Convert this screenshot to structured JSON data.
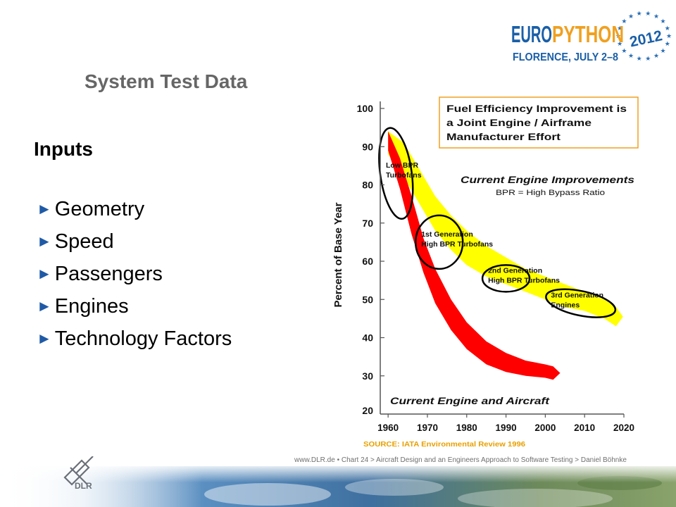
{
  "event_logo": {
    "name_part1": "EURO",
    "name_part2": "PYTHON",
    "year": "2012",
    "subtitle": "FLORENCE, JULY 2–8",
    "colors": {
      "blue": "#1a5fa8",
      "orange": "#f0a020",
      "text": "#1a5fa8",
      "stars": "#2b6fb5"
    }
  },
  "slide": {
    "title": "System Test Data",
    "section_heading": "Inputs",
    "bullets": [
      "Geometry",
      "Speed",
      "Passengers",
      "Engines",
      "Technology Factors"
    ],
    "bullet_marker": "►",
    "bullet_color": "#1f5aa6"
  },
  "footer": {
    "text": "www.DLR.de  •  Chart 24   > Aircraft Design and an Engineers Approach to Software Testing > Daniel Böhnke",
    "logo_label": "DLR"
  },
  "chart_data": {
    "type": "area",
    "ylabel": "Percent of Base Year",
    "xlabel": "",
    "ylim": [
      20,
      100
    ],
    "xlim": [
      1958,
      2020
    ],
    "yticks": [
      "100",
      "90",
      "80",
      "70",
      "60",
      "50",
      "40",
      "30",
      "20"
    ],
    "xticks": [
      "1960",
      "1970",
      "1980",
      "1990",
      "2000",
      "2010",
      "2020"
    ],
    "source": "SOURCE: IATA Environmental Review 1996",
    "callout_box": {
      "lines": [
        "Fuel Efficiency Improvement is",
        "a Joint Engine / Airframe",
        "Manufacturer Effort"
      ],
      "border_color": "#f0a020"
    },
    "series": [
      {
        "name": "Current Engine Improvements",
        "sublabel": "BPR = High Bypass Ratio",
        "color": "#ffff00",
        "upper": [
          [
            1960,
            94
          ],
          [
            1964,
            91
          ],
          [
            1968,
            84
          ],
          [
            1972,
            77
          ],
          [
            1976,
            72
          ],
          [
            1980,
            68
          ],
          [
            1985,
            64
          ],
          [
            1990,
            61
          ],
          [
            1995,
            58
          ],
          [
            2000,
            56
          ],
          [
            2005,
            54
          ],
          [
            2010,
            52
          ],
          [
            2015,
            50
          ],
          [
            2018,
            48
          ]
        ],
        "lower": [
          [
            1960,
            88
          ],
          [
            1964,
            82
          ],
          [
            1968,
            75
          ],
          [
            1972,
            68
          ],
          [
            1976,
            63
          ],
          [
            1980,
            59
          ],
          [
            1985,
            56
          ],
          [
            1990,
            54
          ],
          [
            1995,
            52
          ],
          [
            2000,
            50
          ],
          [
            2005,
            48
          ],
          [
            2010,
            47
          ],
          [
            2015,
            45
          ],
          [
            2018,
            43
          ]
        ]
      },
      {
        "name": "Current Engine and Aircraft",
        "color": "#ff0000",
        "upper": [
          [
            1960,
            89
          ],
          [
            1963,
            79
          ],
          [
            1966,
            67
          ],
          [
            1969,
            57
          ],
          [
            1972,
            49
          ],
          [
            1976,
            42
          ],
          [
            1980,
            37
          ],
          [
            1985,
            33
          ],
          [
            1990,
            31
          ],
          [
            1995,
            30
          ],
          [
            2000,
            29.5
          ],
          [
            2002,
            29
          ]
        ],
        "lower": [
          [
            1960,
            94
          ],
          [
            1963,
            87
          ],
          [
            1966,
            77
          ],
          [
            1969,
            66
          ],
          [
            1972,
            58
          ],
          [
            1976,
            50
          ],
          [
            1980,
            44
          ],
          [
            1985,
            39
          ],
          [
            1990,
            36
          ],
          [
            1995,
            34
          ],
          [
            2000,
            33
          ],
          [
            2002,
            32.5
          ]
        ]
      }
    ],
    "annotations": [
      {
        "lines": [
          "Low BPR",
          "Turbofans"
        ],
        "x": 1962,
        "y": 83,
        "ellipse_rx_years": 4,
        "ellipse_ry_pct": 12
      },
      {
        "lines": [
          "1st Generation",
          "High BPR Turbofans"
        ],
        "x": 1973,
        "y": 65,
        "ellipse_rx_years": 6,
        "ellipse_ry_pct": 7
      },
      {
        "lines": [
          "2nd Generation",
          "High BPR Turbofans"
        ],
        "x": 1990,
        "y": 55.5,
        "ellipse_rx_years": 6,
        "ellipse_ry_pct": 3.5
      },
      {
        "lines": [
          "3rd Generation",
          "Engines"
        ],
        "x": 2009,
        "y": 49,
        "ellipse_rx_years": 9,
        "ellipse_ry_pct": 3.2
      }
    ]
  }
}
